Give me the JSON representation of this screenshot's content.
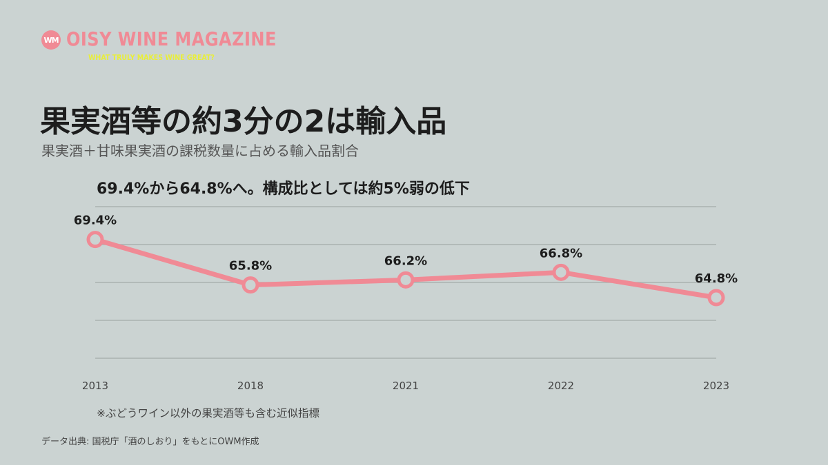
{
  "brand": {
    "badge": "WM",
    "name": "OISY WINE MAGAZINE",
    "tagline": "WHAT TRULY MAKES WINE GREAT?",
    "accent_color": "#f08a95",
    "tagline_color": "#e8ee3a"
  },
  "title": "果実酒等の約3分の2は輸入品",
  "subtitle": "果実酒＋甘味果実酒の課税数量に占める輸入品割合",
  "headline": "69.4%から64.8%へ。構成比としては約5%弱の低下",
  "note": "※ぶどうワイン以外の果実酒等も含む近似指標",
  "source": "データ出典: 国税庁「酒のしおり」をもとにOWM作成",
  "chart_data": {
    "type": "line",
    "categories": [
      "2013",
      "2018",
      "2021",
      "2022",
      "2023"
    ],
    "values": [
      69.4,
      65.8,
      66.2,
      66.8,
      64.8
    ],
    "labels": [
      "69.4%",
      "65.8%",
      "66.2%",
      "66.8%",
      "64.8%"
    ],
    "unit": "%",
    "ylim": [
      60,
      72
    ],
    "grid": true,
    "line_color": "#f08a95"
  }
}
